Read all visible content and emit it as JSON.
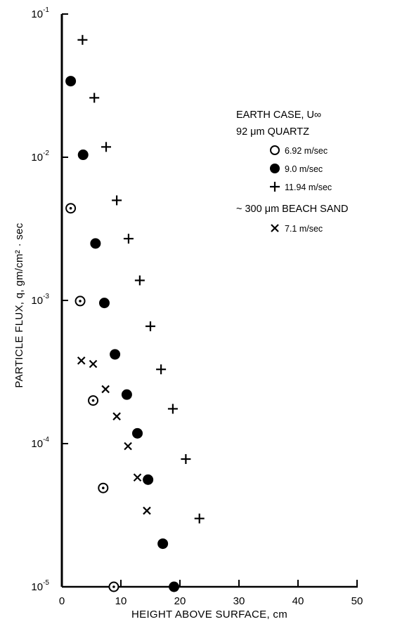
{
  "chart_data": {
    "type": "scatter",
    "xlabel": "HEIGHT ABOVE SURFACE, cm",
    "ylabel": "PARTICLE FLUX, q, gm/cm² · sec",
    "xlim": [
      0,
      50
    ],
    "ylim": [
      1e-05,
      0.1
    ],
    "y_scale": "log",
    "x_ticks": [
      "0",
      "10",
      "20",
      "30",
      "40",
      "50"
    ],
    "y_ticks": [
      {
        "base": "10",
        "exp": "-1",
        "value": 0.1
      },
      {
        "base": "10",
        "exp": "-2",
        "value": 0.01
      },
      {
        "base": "10",
        "exp": "-3",
        "value": 0.001
      },
      {
        "base": "10",
        "exp": "-4",
        "value": 0.0001
      },
      {
        "base": "10",
        "exp": "-5",
        "value": 1e-05
      }
    ],
    "grid": false,
    "legend": {
      "placement": "right",
      "title": "EARTH CASE, U∞",
      "groups": [
        {
          "label": "92 μm QUARTZ",
          "series_names": [
            "6.92 m/sec",
            "9.0 m/sec",
            "11.94 m/sec"
          ]
        },
        {
          "label": "~ 300 μm BEACH SAND",
          "series_names": [
            "7.1 m/sec"
          ]
        }
      ]
    },
    "series": [
      {
        "name": "6.92 m/sec",
        "marker": "circle-dot",
        "points": [
          [
            1.5,
            0.0044
          ],
          [
            3.1,
            0.00099
          ],
          [
            5.3,
            0.0002
          ],
          [
            7.0,
            4.9e-05
          ],
          [
            8.8,
            1e-05
          ]
        ]
      },
      {
        "name": "9.0 m/sec",
        "marker": "filled-circle",
        "points": [
          [
            1.5,
            0.034
          ],
          [
            3.6,
            0.0104
          ],
          [
            5.7,
            0.0025
          ],
          [
            7.2,
            0.00096
          ],
          [
            9.0,
            0.00042
          ],
          [
            11.0,
            0.00022
          ],
          [
            12.8,
            0.000118
          ],
          [
            14.6,
            5.6e-05
          ],
          [
            17.1,
            2e-05
          ],
          [
            19.0,
            1e-05
          ]
        ]
      },
      {
        "name": "11.94 m/sec",
        "marker": "plus",
        "points": [
          [
            3.5,
            0.066
          ],
          [
            5.5,
            0.026
          ],
          [
            7.5,
            0.0118
          ],
          [
            9.3,
            0.005
          ],
          [
            11.3,
            0.0027
          ],
          [
            13.2,
            0.00138
          ],
          [
            15.0,
            0.00066
          ],
          [
            16.8,
            0.00033
          ],
          [
            18.8,
            0.000175
          ],
          [
            21.0,
            7.8e-05
          ],
          [
            23.3,
            3e-05
          ]
        ]
      },
      {
        "name": "7.1 m/sec",
        "marker": "x",
        "points": [
          [
            3.3,
            0.00038
          ],
          [
            5.3,
            0.00036
          ],
          [
            7.4,
            0.00024
          ],
          [
            9.3,
            0.000155
          ],
          [
            11.2,
            9.6e-05
          ],
          [
            12.8,
            5.8e-05
          ],
          [
            14.4,
            3.4e-05
          ]
        ]
      }
    ]
  }
}
